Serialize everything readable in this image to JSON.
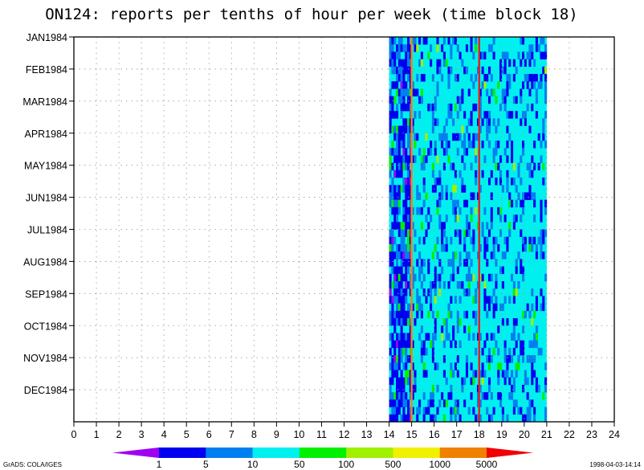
{
  "chart_data": {
    "type": "heatmap",
    "title": "ON124: reports per tenths of hour per week (time block 18)",
    "x_ticks": [
      "0",
      "1",
      "2",
      "3",
      "4",
      "5",
      "6",
      "7",
      "8",
      "9",
      "10",
      "11",
      "12",
      "13",
      "14",
      "15",
      "16",
      "17",
      "18",
      "19",
      "20",
      "21",
      "22",
      "23",
      "24"
    ],
    "xlim": [
      0,
      24
    ],
    "y_ticks": [
      "JAN1984",
      "FEB1984",
      "MAR1984",
      "APR1984",
      "MAY1984",
      "JUN1984",
      "JUL1984",
      "AUG1984",
      "SEP1984",
      "OCT1984",
      "NOV1984",
      "DEC1984"
    ],
    "grid": true,
    "data_x_range": [
      14,
      21
    ],
    "weeks": 52,
    "dominant_bin": "10-50",
    "vertical_lines": [
      {
        "x": 15,
        "color": "#ff8000"
      },
      {
        "x": 18,
        "color": "#e02020"
      }
    ],
    "legend": {
      "placement": "bottom",
      "labels": [
        "1",
        "5",
        "10",
        "50",
        "100",
        "500",
        "1000",
        "5000"
      ],
      "colors": [
        "#a000f0",
        "#0000f0",
        "#0080f0",
        "#00f0f0",
        "#00f000",
        "#a0f000",
        "#f0f000",
        "#f08000",
        "#f00000"
      ]
    }
  },
  "footer": {
    "left": "GrADS: COLA/IGES",
    "right": "1998-04-03-14:14"
  }
}
